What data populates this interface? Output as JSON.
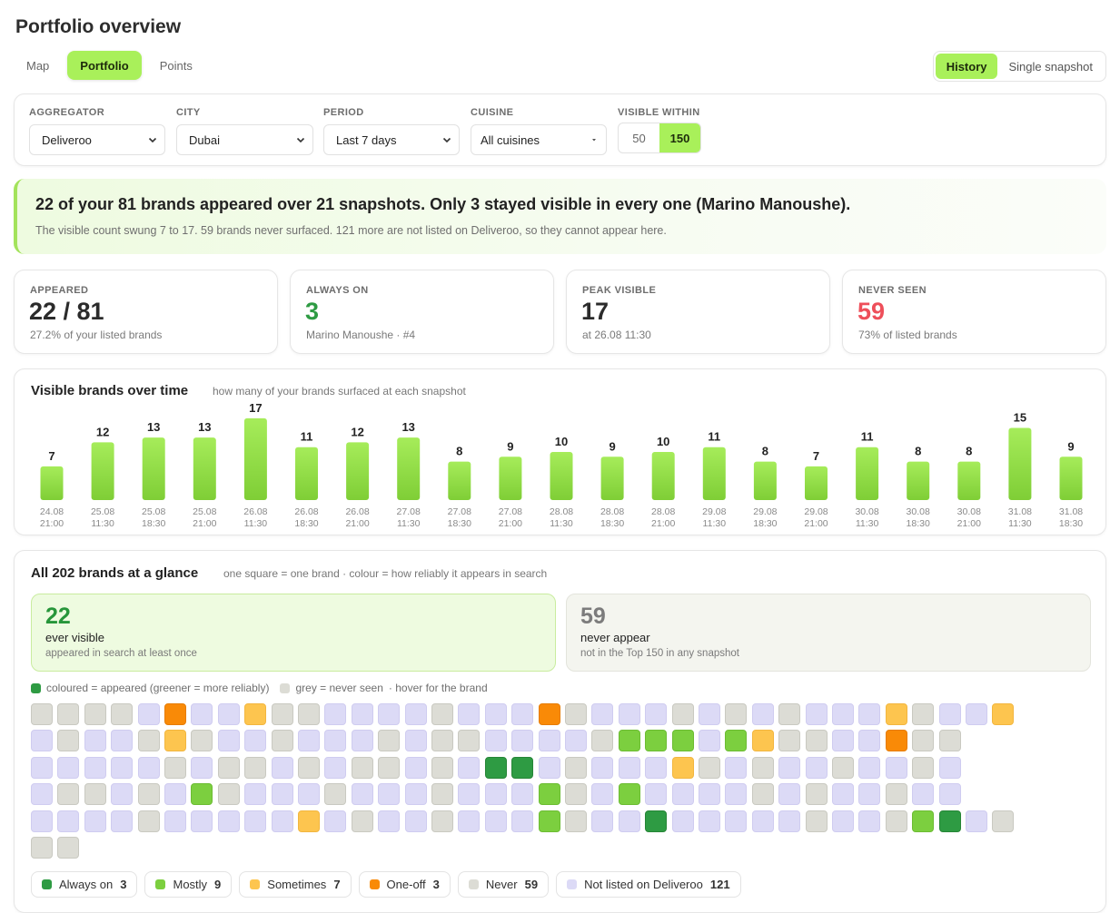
{
  "page": {
    "title": "Portfolio overview"
  },
  "nav": {
    "tabs": [
      {
        "label": "Map",
        "active": false
      },
      {
        "label": "Portfolio",
        "active": true
      },
      {
        "label": "Points",
        "active": false
      }
    ]
  },
  "view_toggle": {
    "options": [
      {
        "label": "History",
        "active": true
      },
      {
        "label": "Single snapshot",
        "active": false
      }
    ]
  },
  "filters": {
    "aggregator": {
      "label": "AGGREGATOR",
      "value": "Deliveroo"
    },
    "city": {
      "label": "CITY",
      "value": "Dubai"
    },
    "period": {
      "label": "PERIOD",
      "value": "Last 7 days"
    },
    "cuisine": {
      "label": "CUISINE",
      "value": "All cuisines"
    },
    "visible_within": {
      "label": "VISIBLE WITHIN",
      "options": [
        "50",
        "150"
      ],
      "selected": "150"
    }
  },
  "banner": {
    "headline": "22 of your 81 brands appeared over 21 snapshots. Only 3 stayed visible in every one (Marino Manoushe).",
    "sub": "The visible count swung 7 to 17. 59 brands never surfaced. 121 more are not listed on Deliveroo, so they cannot appear here."
  },
  "stats": {
    "appeared": {
      "label": "APPEARED",
      "value": "22 / 81",
      "desc": "27.2% of your listed brands"
    },
    "always_on": {
      "label": "ALWAYS ON",
      "value": "3",
      "desc": "Marino Manoushe · #4",
      "color": "#2e9b43"
    },
    "peak_visible": {
      "label": "PEAK VISIBLE",
      "value": "17",
      "desc": "at 26.08 11:30"
    },
    "never_seen": {
      "label": "NEVER SEEN",
      "value": "59",
      "desc": "73% of listed brands",
      "color": "#ee4f5a"
    }
  },
  "chart": {
    "title": "Visible brands over time",
    "subtitle": "how many of your brands surfaced at each snapshot"
  },
  "chart_data": {
    "type": "bar",
    "categories": [
      "24.08 21:00",
      "25.08 11:30",
      "25.08 18:30",
      "25.08 21:00",
      "26.08 11:30",
      "26.08 18:30",
      "26.08 21:00",
      "27.08 11:30",
      "27.08 18:30",
      "27.08 21:00",
      "28.08 11:30",
      "28.08 18:30",
      "28.08 21:00",
      "29.08 11:30",
      "29.08 18:30",
      "29.08 21:00",
      "30.08 11:30",
      "30.08 18:30",
      "30.08 21:00",
      "31.08 11:30",
      "31.08 18:30"
    ],
    "values": [
      7,
      12,
      13,
      13,
      17,
      11,
      12,
      13,
      8,
      9,
      10,
      9,
      10,
      11,
      8,
      7,
      11,
      8,
      8,
      15,
      9
    ],
    "bar_color": [
      "#a6ec5a",
      "#7fce36"
    ]
  },
  "brands_grid": {
    "title": "All 202 brands at a glance",
    "subtitle": "one square = one brand · colour = how reliably it appears in search",
    "ever_visible": {
      "number": "22",
      "title": "ever visible",
      "desc": "appeared in search at least once"
    },
    "never_appear": {
      "number": "59",
      "title": "never appear",
      "desc": "not in the Top 150 in any snapshot"
    },
    "legend_line": {
      "coloured": "coloured = appeared (greener = more reliably)",
      "grey": "grey = never seen",
      "hover": "·  hover for the brand"
    },
    "rows": [
      "NNNNLOLLSNNLLLLNLLLONLLLNLNLNLLLSNLLS",
      "LNLLNSNLLNLLLNLNNLLLLNMMMLMSNNLLONN",
      "LLLLLNLNNLNLNNLNLAALNLLLSNLNLLNLLNL",
      "LNNLNLMNLLLNLLLNLLLMNLMLLLLNLNLLNLL",
      "LLLLNLLLLLSLNLLNLLLMNLLALLLLLNLLNMALN",
      "NN"
    ],
    "categories": {
      "always": {
        "label": "Always on",
        "count": "3",
        "color": "#2e9b43"
      },
      "mostly": {
        "label": "Mostly",
        "count": "9",
        "color": "#7ccf3f"
      },
      "sometimes": {
        "label": "Sometimes",
        "count": "7",
        "color": "#fdc54f"
      },
      "oneoff": {
        "label": "One-off",
        "count": "3",
        "color": "#f98a07"
      },
      "never": {
        "label": "Never",
        "count": "59",
        "color": "#dcdcd5"
      },
      "notlisted": {
        "label": "Not listed on Deliveroo",
        "count": "121",
        "color": "#dcdaf6"
      }
    }
  }
}
